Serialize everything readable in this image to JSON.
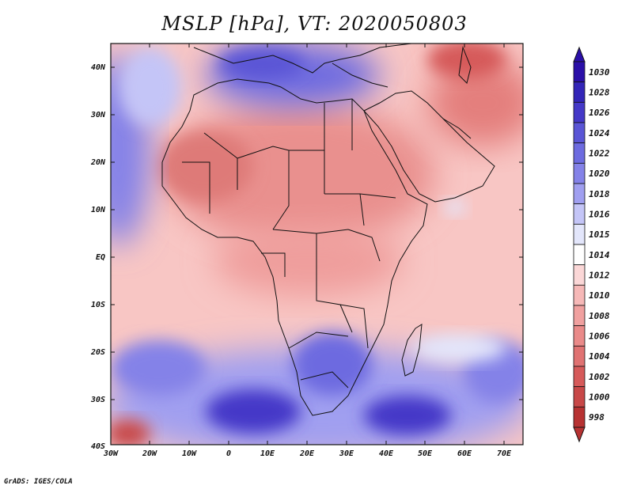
{
  "title": "MSLP [hPa], VT: 2020050803",
  "credit": "GrADS: IGES/COLA",
  "map": {
    "lat_labels": [
      "40N",
      "30N",
      "20N",
      "10N",
      "EQ",
      "10S",
      "20S",
      "30S",
      "40S"
    ],
    "lon_labels": [
      "30W",
      "20W",
      "10W",
      "0",
      "10E",
      "20E",
      "30E",
      "40E",
      "50E",
      "60E",
      "70E"
    ]
  },
  "colorbar": {
    "levels": [
      "1030",
      "1028",
      "1026",
      "1024",
      "1022",
      "1020",
      "1018",
      "1016",
      "1015",
      "1014",
      "1012",
      "1010",
      "1008",
      "1006",
      "1004",
      "1002",
      "1000",
      "998"
    ],
    "colors": [
      "#2a0fa8",
      "#3325b8",
      "#4438c8",
      "#5a55d6",
      "#6d6be0",
      "#8482e8",
      "#a09ff0",
      "#c4c5f7",
      "#e3e6fb",
      "#ffffff",
      "#fbd7d7",
      "#f6b8b7",
      "#f0a09f",
      "#ea8a89",
      "#e07272",
      "#d65a5a",
      "#c84848",
      "#b73232"
    ]
  }
}
